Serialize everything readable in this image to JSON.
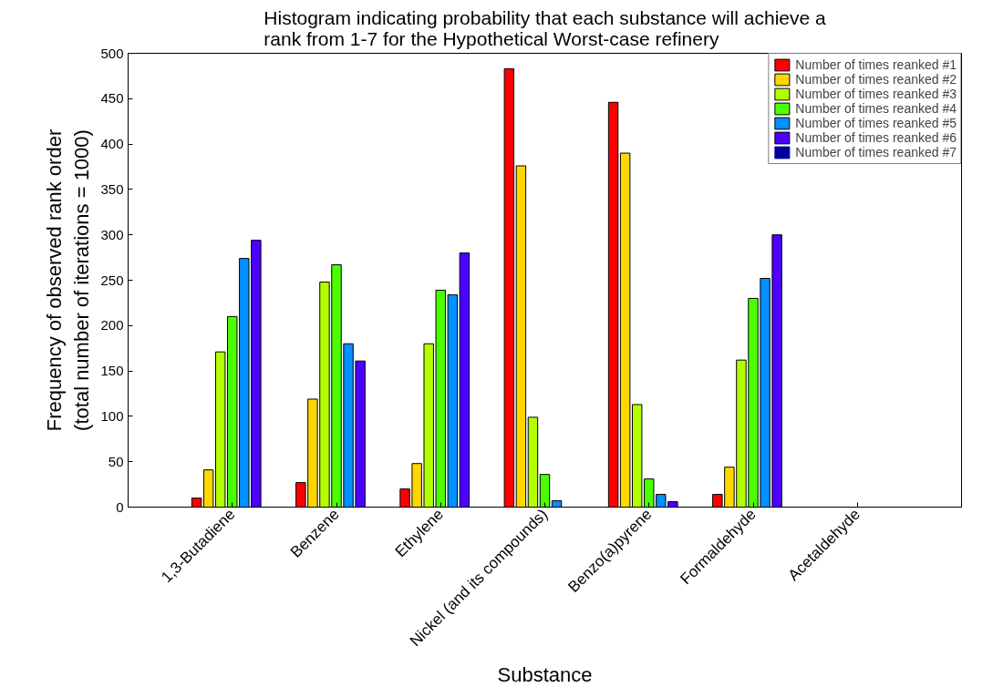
{
  "chart_data": {
    "type": "bar",
    "title": "Histogram indicating probability that each substance will achieve a\nrank from 1-7 for the Hypothetical Worst-case refinery",
    "xlabel": "Substance",
    "ylabel": "Frequency of observed rank order\n(total number of iterations = 1000)",
    "categories": [
      "1,3-Butadiene",
      "Benzene",
      "Ethylene",
      "Nickel (and its compounds)",
      "Benzo(a)pyrene",
      "Formaldehyde",
      "Acetaldehyde"
    ],
    "series": [
      {
        "name": "Number of times reanked #1",
        "color": "#ff0000",
        "values": [
          10,
          27,
          20,
          483,
          446,
          14,
          0
        ]
      },
      {
        "name": "Number of times reanked #2",
        "color": "#ffd700",
        "values": [
          41,
          119,
          48,
          376,
          390,
          44,
          0
        ]
      },
      {
        "name": "Number of times reanked #3",
        "color": "#b3ff00",
        "values": [
          171,
          248,
          180,
          99,
          113,
          162,
          0
        ]
      },
      {
        "name": "Number of times reanked #4",
        "color": "#4cff00",
        "values": [
          210,
          267,
          239,
          36,
          31,
          230,
          0
        ]
      },
      {
        "name": "Number of times reanked #5",
        "color": "#0090ff",
        "values": [
          274,
          180,
          234,
          7,
          14,
          252,
          0
        ]
      },
      {
        "name": "Number of times reanked #6",
        "color": "#4c00ff",
        "values": [
          294,
          161,
          280,
          0,
          6,
          300,
          0
        ]
      },
      {
        "name": "Number of times reanked #7",
        "color": "#0000a0",
        "values": [
          0,
          0,
          0,
          0,
          0,
          0,
          0
        ]
      }
    ],
    "ylim": [
      0,
      500
    ],
    "yticks": [
      0,
      50,
      100,
      150,
      200,
      250,
      300,
      350,
      400,
      450,
      500
    ],
    "grid": false,
    "legend": "top right"
  }
}
